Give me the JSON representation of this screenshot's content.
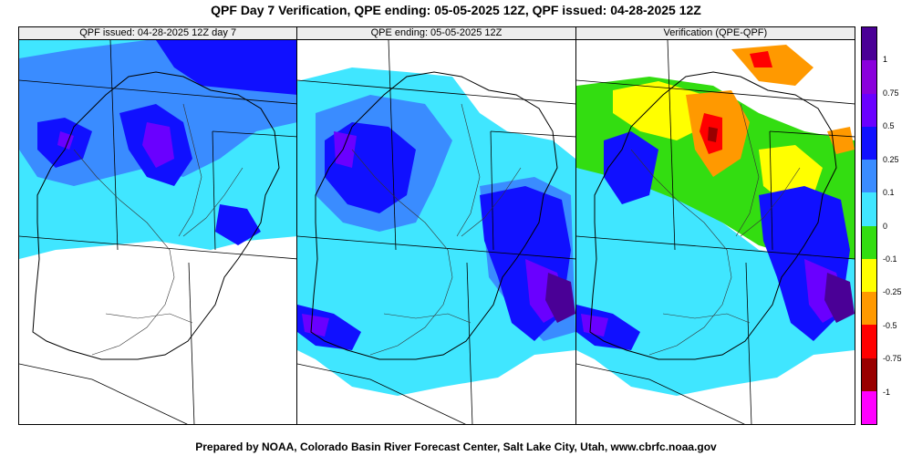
{
  "title": "QPF Day 7 Verification, QPE ending: 05-05-2025 12Z, QPF issued: 04-28-2025 12Z",
  "footer": "Prepared by NOAA, Colorado Basin River Forecast Center, Salt Lake City, Utah, www.cbrfc.noaa.gov",
  "panels": [
    {
      "title": "QPF issued: 04-28-2025 12Z day 7"
    },
    {
      "title": "QPE ending: 05-05-2025 12Z"
    },
    {
      "title": "Verification (QPE-QPF)"
    }
  ],
  "legend": {
    "labels": [
      "1",
      "0.75",
      "0.5",
      "0.25",
      "0.1",
      "0",
      "-0.1",
      "-0.25",
      "-0.5",
      "-0.75",
      "-1"
    ],
    "colors": [
      "#4a0096",
      "#8a00dc",
      "#6a00ff",
      "#1010ff",
      "#3a8cff",
      "#40e6ff",
      "#33dd11",
      "#ffff00",
      "#ff9900",
      "#ff0000",
      "#990000",
      "#ff00ff"
    ]
  },
  "map_colors": {
    "light_blue": "#40e6ff",
    "mid_blue": "#3a8cff",
    "blue": "#1010ff",
    "purple": "#6a00ff",
    "dark_purple": "#4a0096",
    "green": "#33dd11",
    "yellow": "#ffff00",
    "orange": "#ff9900",
    "red": "#ff0000",
    "dark_red": "#990000"
  }
}
